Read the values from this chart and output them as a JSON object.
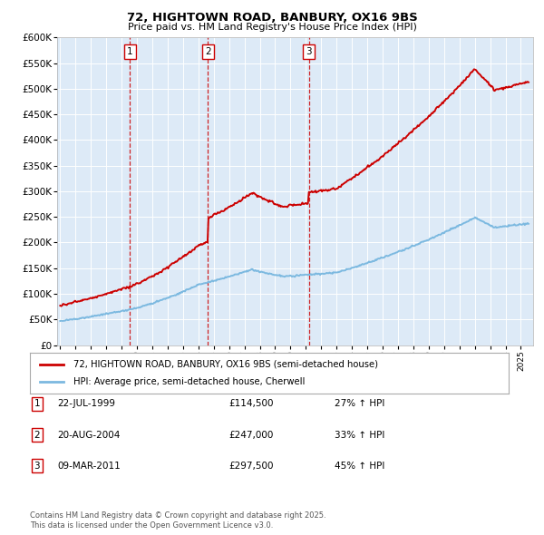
{
  "title_line1": "72, HIGHTOWN ROAD, BANBURY, OX16 9BS",
  "title_line2": "Price paid vs. HM Land Registry's House Price Index (HPI)",
  "legend_label1": "72, HIGHTOWN ROAD, BANBURY, OX16 9BS (semi-detached house)",
  "legend_label2": "HPI: Average price, semi-detached house, Cherwell",
  "transactions": [
    {
      "num": 1,
      "date_str": "22-JUL-1999",
      "price": 114500,
      "pct": "27%",
      "year_x": 1999.55
    },
    {
      "num": 2,
      "date_str": "20-AUG-2004",
      "price": 247000,
      "pct": "33%",
      "year_x": 2004.63
    },
    {
      "num": 3,
      "date_str": "09-MAR-2011",
      "price": 297500,
      "pct": "45%",
      "year_x": 2011.19
    }
  ],
  "footer_line1": "Contains HM Land Registry data © Crown copyright and database right 2025.",
  "footer_line2": "This data is licensed under the Open Government Licence v3.0.",
  "hpi_color": "#7cb9e0",
  "price_color": "#cc0000",
  "plot_bg_color": "#ddeaf7",
  "grid_color": "#ffffff",
  "ylim": [
    0,
    600000
  ],
  "xlim_start": 1994.8,
  "xlim_end": 2025.8,
  "yticks": [
    0,
    50000,
    100000,
    150000,
    200000,
    250000,
    300000,
    350000,
    400000,
    450000,
    500000,
    550000,
    600000
  ]
}
